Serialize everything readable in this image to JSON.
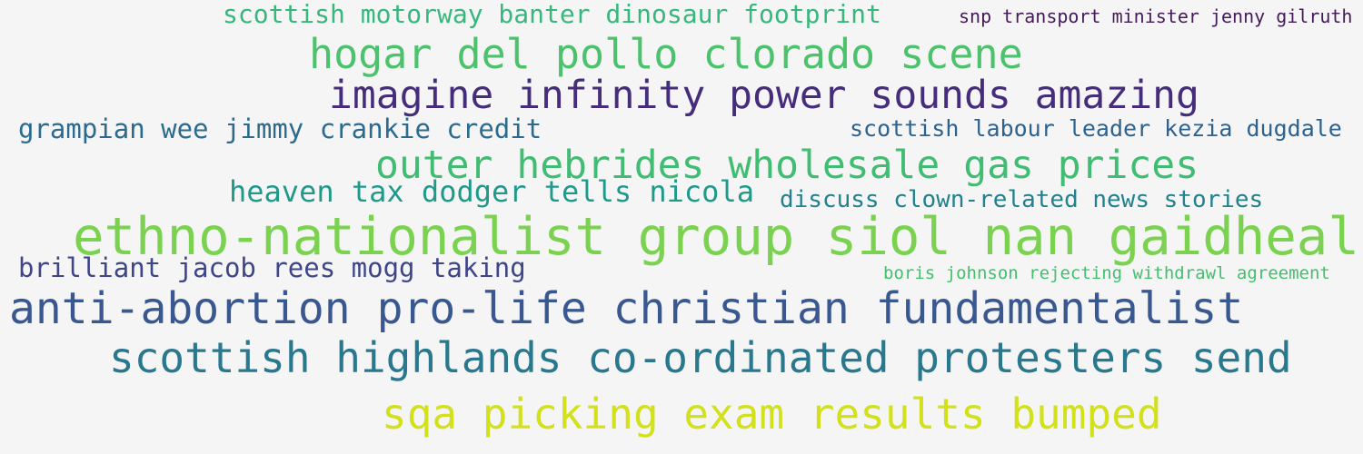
{
  "phrases": [
    {
      "text": "scottish motorway banter dinosaur footprint",
      "color": "#38b77d"
    },
    {
      "text": "snp transport minister jenny gilruth",
      "color": "#441a59"
    },
    {
      "text": "hogar del pollo clorado scene",
      "color": "#4cc26c"
    },
    {
      "text": "imagine infinity power sounds amazing",
      "color": "#452d7b"
    },
    {
      "text": "grampian wee jimmy crankie credit",
      "color": "#2c6b8e"
    },
    {
      "text": "scottish labour leader kezia dugdale",
      "color": "#2d628e"
    },
    {
      "text": "outer hebrides wholesale gas prices",
      "color": "#40bd72"
    },
    {
      "text": "heaven tax dodger tells nicola",
      "color": "#1f9a8a"
    },
    {
      "text": "discuss clown-related news stories",
      "color": "#21828d"
    },
    {
      "text": "ethno-nationalist group siol nan gaidheal",
      "color": "#7bd250"
    },
    {
      "text": "brilliant jacob rees mogg taking",
      "color": "#3f4589"
    },
    {
      "text": "boris johnson rejecting withdrawl agreement",
      "color": "#42c06c"
    },
    {
      "text": "anti-abortion pro-life christian fundamentalist",
      "color": "#3a5890"
    },
    {
      "text": "scottish highlands co-ordinated protesters send",
      "color": "#29788e"
    },
    {
      "text": "sqa picking exam results bumped",
      "color": "#d2e11c"
    }
  ]
}
